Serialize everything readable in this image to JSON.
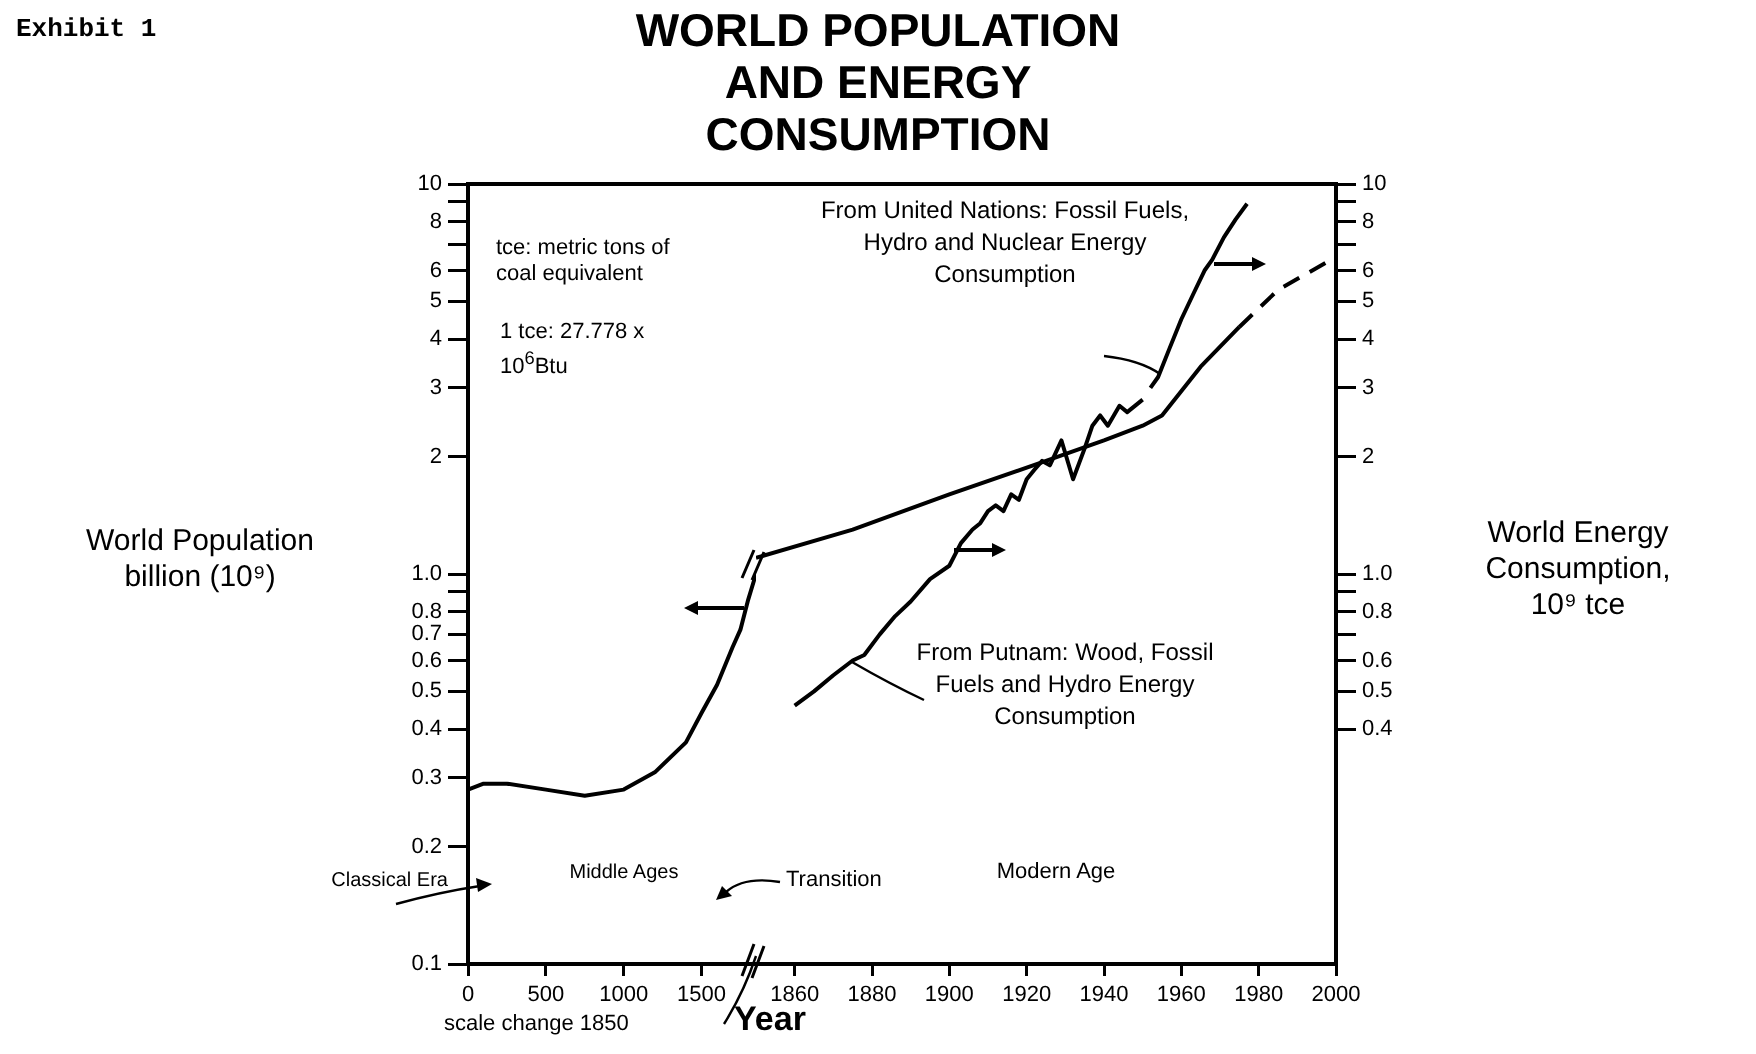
{
  "chart_data": [
    {
      "type": "line",
      "title": "WORLD POPULATION AND ENERGY CONSUMPTION",
      "ylabel": "World Population billion (10⁹)",
      "log": true,
      "xlim": [
        0,
        1850
      ],
      "xticks": [
        0,
        500,
        1000,
        1500
      ],
      "ylim": [
        0.1,
        10
      ],
      "yticks": [
        0.1,
        0.2,
        0.3,
        0.4,
        0.5,
        0.6,
        0.7,
        0.8,
        {
          "value": 0.9,
          "label": null
        },
        {
          "value": 1,
          "label": "1.0"
        },
        2,
        3,
        4,
        5,
        6,
        {
          "value": 7,
          "label": null
        },
        8,
        {
          "value": 9,
          "label": null
        },
        10
      ],
      "grid": false,
      "series": [
        {
          "color": "#000000",
          "x": [
            0,
            100,
            250,
            500,
            750,
            1000,
            1200,
            1400,
            1500,
            1600,
            1700,
            1750,
            1800,
            1850
          ],
          "values": [
            0.28,
            0.29,
            0.29,
            0.28,
            0.27,
            0.28,
            0.31,
            0.37,
            0.44,
            0.52,
            0.65,
            0.72,
            0.86,
            1.0
          ]
        }
      ],
      "annotations": [
        "Exhibit 1",
        "tce: metric tons of coal equivalent",
        "1 tce: 27.778 x 10$^{6}$Btu",
        "Classical Era",
        "Middle Ages",
        "scale change 1850"
      ]
    },
    {
      "type": "line",
      "ylabel": "World Energy Consumption, 10⁹ tce",
      "xlabel": "Year",
      "log": true,
      "xlim": [
        1850,
        2000
      ],
      "xticks": [
        1860,
        1880,
        1900,
        1920,
        1940,
        1960,
        1980,
        2000
      ],
      "ylim": [
        0.1,
        10
      ],
      "yticks": [
        0.4,
        0.5,
        0.6,
        {
          "value": 0.7,
          "label": null
        },
        0.8,
        {
          "value": 0.9,
          "label": null
        },
        {
          "value": 1,
          "label": "1.0"
        },
        2,
        3,
        4,
        5,
        6,
        {
          "value": 7,
          "label": null
        },
        8,
        {
          "value": 9,
          "label": null
        },
        10
      ],
      "grid": false,
      "series": [
        {
          "color": "#000000",
          "x": [
            1850,
            1875,
            1900,
            1925,
            1940,
            1950,
            1955,
            1965,
            1975
          ],
          "values": [
            1.1,
            1.3,
            1.6,
            1.95,
            2.2,
            2.4,
            2.55,
            3.4,
            4.3
          ]
        },
        {
          "color": "#000000",
          "line_style": "dashed",
          "x": [
            1975,
            1985,
            2000
          ],
          "values": [
            4.3,
            5.35,
            6.5
          ]
        },
        {
          "name": "From Putnam: Wood, Fossil Fuels and Hydro Energy Consumption",
          "color": "#000000",
          "x": [
            1860,
            1865,
            1870,
            1875,
            1878,
            1882,
            1886,
            1890,
            1895,
            1900,
            1903,
            1906,
            1908,
            1910,
            1912,
            1914,
            1916,
            1918,
            1920,
            1922,
            1924,
            1926,
            1929,
            1932,
            1935,
            1937,
            1939,
            1941,
            1944,
            1946,
            1950
          ],
          "values": [
            0.46,
            0.5,
            0.55,
            0.6,
            0.62,
            0.7,
            0.78,
            0.85,
            0.97,
            1.05,
            1.2,
            1.3,
            1.35,
            1.45,
            1.5,
            1.45,
            1.6,
            1.55,
            1.75,
            1.85,
            1.95,
            1.9,
            2.2,
            1.75,
            2.1,
            2.4,
            2.55,
            2.4,
            2.7,
            2.6,
            2.8
          ]
        },
        {
          "name": "From United Nations: Fossil Fuels, Hydro and Nuclear Energy Consumption",
          "color": "#000000",
          "x": [
            1952,
            1954,
            1957,
            1960,
            1963,
            1966,
            1968,
            1971,
            1974,
            1977
          ],
          "values": [
            3.0,
            3.2,
            3.8,
            4.5,
            5.2,
            6.0,
            6.4,
            7.3,
            8.1,
            8.9
          ]
        }
      ],
      "annotations": [
        "Transition",
        "Modern Age"
      ]
    }
  ]
}
